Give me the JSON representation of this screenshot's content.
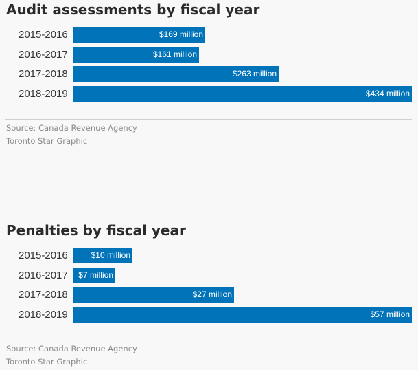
{
  "chart_data": [
    {
      "type": "bar",
      "orientation": "horizontal",
      "title": "Audit assessments by fiscal year",
      "categories": [
        "2015-2016",
        "2016-2017",
        "2017-2018",
        "2018-2019"
      ],
      "values": [
        169,
        161,
        263,
        434
      ],
      "value_labels": [
        "$169 million",
        "$161 million",
        "$263 million",
        "$434 million"
      ],
      "unit": "$ million",
      "xlim": [
        0,
        434
      ],
      "bar_color": "#0073b9",
      "source": "Source: Canada Revenue Agency",
      "credit": "Toronto Star Graphic"
    },
    {
      "type": "bar",
      "orientation": "horizontal",
      "title": "Penalties by fiscal year",
      "categories": [
        "2015-2016",
        "2016-2017",
        "2017-2018",
        "2018-2019"
      ],
      "values": [
        10,
        7,
        27,
        57
      ],
      "value_labels": [
        "$10 million",
        "$7 million",
        "$27 million",
        "$57 million"
      ],
      "unit": "$ million",
      "xlim": [
        0,
        57
      ],
      "bar_color": "#0073b9",
      "source": "Source: Canada Revenue Agency",
      "credit": "Toronto Star Graphic"
    }
  ]
}
